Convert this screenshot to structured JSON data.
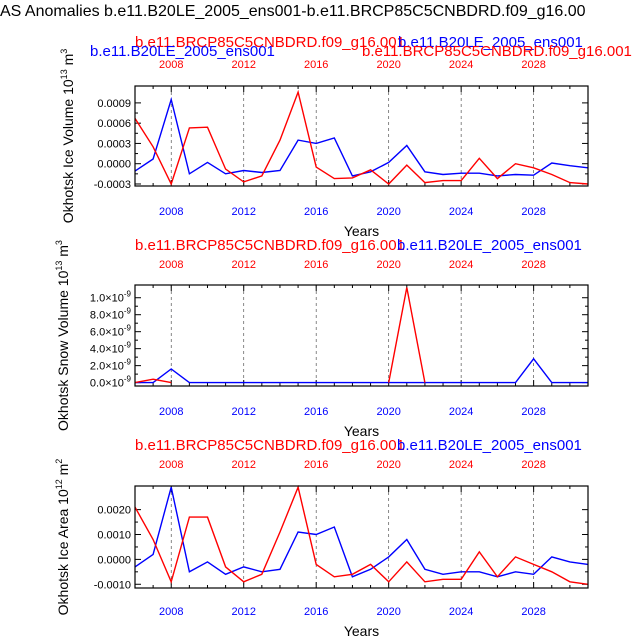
{
  "page_title": "AS Anomalies b.e11.B20LE_2005_ens001-b.e11.BRCP85C5CNBDRD.f09_g16.00",
  "colors": {
    "blue": "#0000ff",
    "red": "#ff0000",
    "black": "#000000",
    "grid": "#555555"
  },
  "chart_data": [
    {
      "type": "line",
      "title_red": "b.e11.BRCP85C5CNBDRD.f09_g16.001",
      "title_blue": "b.e11.B20LE_2005_ens001",
      "title_red_right": "b.e11.BRCP85C5CNBDRD.f09_g16.001",
      "title_blue_right": "b.e11.B20LE_2005_ens001",
      "ylabel_text": "Okhotsk Ice Volume 10",
      "ylabel_exp": "13",
      "ylabel_unit": " m",
      "ylabel_unit_exp": "3",
      "xlabel": "Years",
      "xlim": [
        2006,
        2031
      ],
      "ylim": [
        -0.00033,
        0.00115
      ],
      "yticks": [
        -0.0003,
        0.0,
        0.0003,
        0.0006,
        0.0009
      ],
      "ytick_labels": [
        "-0.0003",
        "0.0000",
        "0.0003",
        "0.0006",
        "0.0009"
      ],
      "xticks": [
        2008,
        2012,
        2016,
        2020,
        2024,
        2028
      ],
      "xtick_labels": [
        "2008",
        "2012",
        "2016",
        "2020",
        "2024",
        "2028"
      ],
      "x": [
        2006,
        2007,
        2008,
        2009,
        2010,
        2011,
        2012,
        2013,
        2014,
        2015,
        2016,
        2017,
        2018,
        2019,
        2020,
        2021,
        2022,
        2023,
        2024,
        2025,
        2026,
        2027,
        2028,
        2029,
        2030,
        2031
      ],
      "series": [
        {
          "name": "b.e11.B20LE_2005_ens001",
          "color": "#0000ff",
          "values": [
            -0.00011,
            7e-05,
            0.00095,
            -0.00015,
            2e-05,
            -0.00015,
            -0.0001,
            -0.00013,
            -0.0001,
            0.00035,
            0.0003,
            0.00038,
            -0.00018,
            -0.00012,
            2e-05,
            0.00027,
            -0.00012,
            -0.00016,
            -0.00014,
            -0.00014,
            -0.00018,
            -0.00016,
            -0.00017,
            1e-05,
            -3e-05,
            -6e-05
          ]
        },
        {
          "name": "b.e11.BRCP85C5CNBDRD.f09_g16.001",
          "color": "#ff0000",
          "values": [
            0.00067,
            0.00025,
            -0.0003,
            0.00053,
            0.00054,
            -8e-05,
            -0.00027,
            -0.00018,
            0.00035,
            0.00106,
            -5e-05,
            -0.00022,
            -0.00021,
            -9e-05,
            -0.0003,
            -2e-05,
            -0.00028,
            -0.00025,
            -0.00025,
            8e-05,
            -0.00022,
            0.0,
            -6e-05,
            -0.00016,
            -0.00028,
            -0.0003
          ]
        }
      ]
    },
    {
      "type": "line",
      "title_red": "b.e11.BRCP85C5CNBDRD.f09_g16.001",
      "title_blue": "b.e11.B20LE_2005_ens001",
      "ylabel_text": "Okhotsk Snow Volume 10",
      "ylabel_exp": "13",
      "ylabel_unit": " m",
      "ylabel_unit_exp": "3",
      "xlabel": "Years",
      "xlim": [
        2006,
        2031
      ],
      "ylim": [
        -4e-11,
        1.15e-09
      ],
      "yticks": [
        0.0,
        2e-10,
        4e-10,
        6e-10,
        8e-10,
        1e-09
      ],
      "ytick_labels": [
        "0.0×10",
        "2.0×10",
        "4.0×10",
        "6.0×10",
        "8.0×10",
        "1.0×10"
      ],
      "ytick_exp": "-9",
      "xticks": [
        2008,
        2012,
        2016,
        2020,
        2024,
        2028
      ],
      "xtick_labels": [
        "2008",
        "2012",
        "2016",
        "2020",
        "2024",
        "2028"
      ],
      "x": [
        2006,
        2007,
        2008,
        2009,
        2010,
        2011,
        2012,
        2013,
        2014,
        2015,
        2016,
        2017,
        2018,
        2019,
        2020,
        2021,
        2022,
        2023,
        2024,
        2025,
        2026,
        2027,
        2028,
        2029,
        2030,
        2031
      ],
      "series": [
        {
          "name": "b.e11.B20LE_2005_ens001",
          "color": "#0000ff",
          "values": [
            0.0,
            0.0,
            1.6e-10,
            0.0,
            0.0,
            0.0,
            0.0,
            0.0,
            0.0,
            0.0,
            0.0,
            0.0,
            0.0,
            0.0,
            0.0,
            0.0,
            0.0,
            0.0,
            0.0,
            0.0,
            0.0,
            0.0,
            2.8e-10,
            0.0,
            0.0,
            0.0
          ]
        },
        {
          "name": "b.e11.BRCP85C5CNBDRD.f09_g16.001",
          "color": "#ff0000",
          "values": [
            0.0,
            4e-11,
            0.0,
            null,
            null,
            null,
            null,
            null,
            null,
            null,
            null,
            null,
            null,
            null,
            0.0,
            1.12e-09,
            0.0,
            null,
            null,
            null,
            null,
            null,
            null,
            null,
            null,
            null
          ]
        }
      ]
    },
    {
      "type": "line",
      "title_red": "b.e11.BRCP85C5CNBDRD.f09_g16.001",
      "title_blue": "b.e11.B20LE_2005_ens001",
      "ylabel_text": "Okhotsk Ice Area 10",
      "ylabel_exp": "12",
      "ylabel_unit": " m",
      "ylabel_unit_exp": "2",
      "xlabel": "Years",
      "xlim": [
        2006,
        2031
      ],
      "ylim": [
        -0.00115,
        0.00295
      ],
      "yticks": [
        -0.001,
        0.0,
        0.001,
        0.002
      ],
      "ytick_labels": [
        "-0.0010",
        "0.0000",
        "0.0010",
        "0.0020"
      ],
      "xticks": [
        2008,
        2012,
        2016,
        2020,
        2024,
        2028
      ],
      "xtick_labels": [
        "2008",
        "2012",
        "2016",
        "2020",
        "2024",
        "2028"
      ],
      "x": [
        2006,
        2007,
        2008,
        2009,
        2010,
        2011,
        2012,
        2013,
        2014,
        2015,
        2016,
        2017,
        2018,
        2019,
        2020,
        2021,
        2022,
        2023,
        2024,
        2025,
        2026,
        2027,
        2028,
        2029,
        2030,
        2031
      ],
      "series": [
        {
          "name": "b.e11.B20LE_2005_ens001",
          "color": "#0000ff",
          "values": [
            -0.0003,
            0.0002,
            0.0029,
            -0.0005,
            -0.0001,
            -0.0006,
            -0.0003,
            -0.0005,
            -0.0004,
            0.0011,
            0.001,
            0.0013,
            -0.0007,
            -0.0004,
            0.0001,
            0.0008,
            -0.0004,
            -0.0006,
            -0.0005,
            -0.0005,
            -0.0007,
            -0.0005,
            -0.0006,
            0.0001,
            -0.0001,
            -0.0002
          ]
        },
        {
          "name": "b.e11.BRCP85C5CNBDRD.f09_g16.001",
          "color": "#ff0000",
          "values": [
            0.0021,
            0.0008,
            -0.0009,
            0.0017,
            0.0017,
            -0.0003,
            -0.0009,
            -0.0006,
            0.0011,
            0.0029,
            -0.0002,
            -0.0007,
            -0.0006,
            -0.0002,
            -0.0009,
            -0.0001,
            -0.0009,
            -0.0008,
            -0.0008,
            0.0003,
            -0.0007,
            0.0001,
            -0.0002,
            -0.0005,
            -0.0009,
            -0.001
          ]
        }
      ]
    }
  ]
}
